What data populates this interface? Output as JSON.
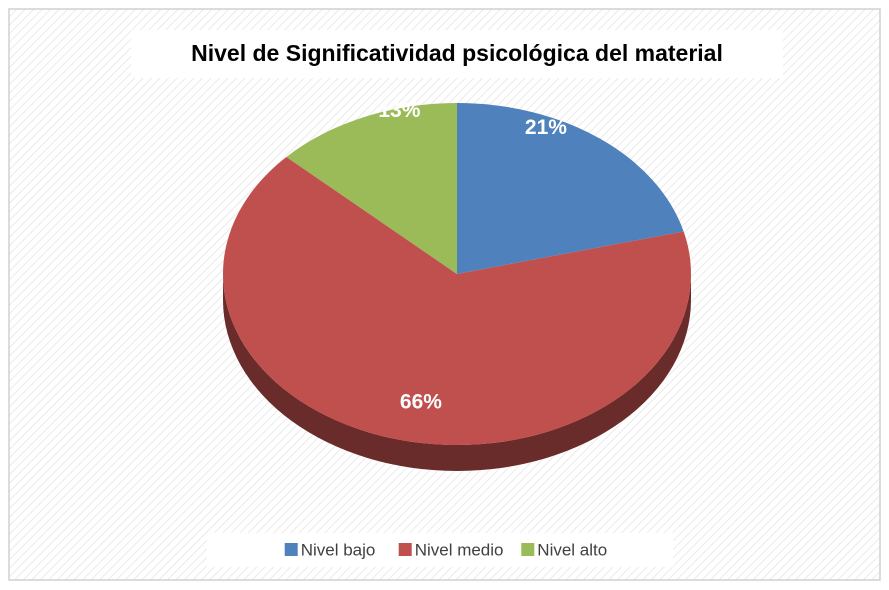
{
  "chart_data": {
    "type": "pie",
    "title": "Nivel de Significatividad psicológica del material",
    "categories": [
      "Nivel bajo",
      "Nivel medio",
      "Nivel alto"
    ],
    "values": [
      21,
      66,
      13
    ],
    "value_labels": [
      "21%",
      "66%",
      "13%"
    ],
    "colors": [
      "#4f81bd",
      "#c0504d",
      "#9bbb59"
    ],
    "legend": "bottom"
  }
}
